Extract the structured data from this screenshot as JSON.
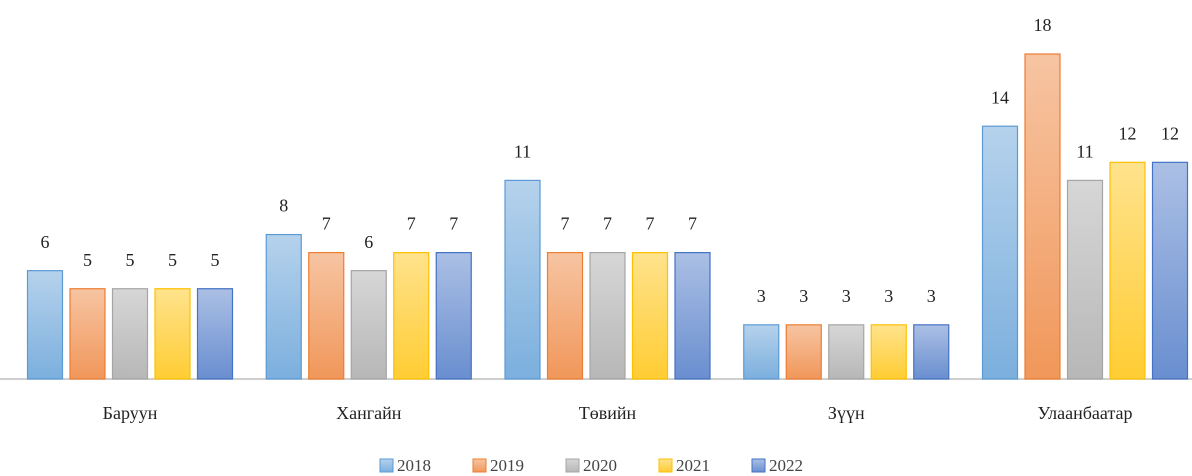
{
  "chart_data": {
    "type": "bar",
    "categories": [
      "Баруун",
      "Хангайн",
      "Төвийн",
      "Зүүн",
      "Улаанбаатар"
    ],
    "series": [
      {
        "name": "2018",
        "color": "#5b9bd5",
        "values": [
          6,
          8,
          11,
          3,
          14
        ]
      },
      {
        "name": "2019",
        "color": "#ed7d31",
        "values": [
          5,
          7,
          7,
          3,
          18
        ]
      },
      {
        "name": "2020",
        "color": "#a5a5a5",
        "values": [
          5,
          6,
          7,
          3,
          11
        ]
      },
      {
        "name": "2021",
        "color": "#ffc000",
        "values": [
          5,
          7,
          7,
          3,
          12
        ]
      },
      {
        "name": "2022",
        "color": "#4472c4",
        "values": [
          5,
          7,
          7,
          3,
          12
        ]
      }
    ],
    "ylim": [
      0,
      18
    ]
  }
}
